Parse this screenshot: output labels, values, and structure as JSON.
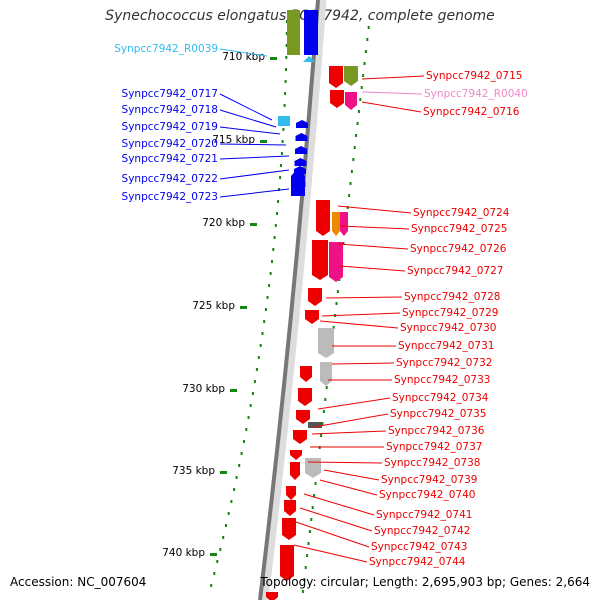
{
  "title": "Synechococcus elongatus PCC 7942, complete genome",
  "footer": {
    "accession": "Accession: NC_007604",
    "summary": "Topology: circular; Length: 2,695,903 bp; Genes: 2,664"
  },
  "colors": {
    "forward_gene": "#ee0000",
    "reverse_gene": "#0000ee",
    "rna_gene": "#33bbee",
    "pink_gene": "#ee1188",
    "cog_green": "#779922",
    "cog_orange": "#ee8800",
    "cog_gray": "#bbbbbb",
    "tick": "#118811"
  },
  "chart_data": {
    "type": "genome-map",
    "scale_labels": [
      "710 kbp",
      "715 kbp",
      "720 kbp",
      "725 kbp",
      "730 kbp",
      "735 kbp",
      "740 kbp"
    ],
    "left_labels": [
      {
        "text": "Synpcc7942_R0039",
        "kind": "rna"
      },
      {
        "text": "Synpcc7942_0717",
        "kind": "reverse"
      },
      {
        "text": "Synpcc7942_0718",
        "kind": "reverse"
      },
      {
        "text": "Synpcc7942_0719",
        "kind": "reverse"
      },
      {
        "text": "Synpcc7942_0720",
        "kind": "reverse"
      },
      {
        "text": "Synpcc7942_0721",
        "kind": "reverse"
      },
      {
        "text": "Synpcc7942_0722",
        "kind": "reverse"
      },
      {
        "text": "Synpcc7942_0723",
        "kind": "reverse"
      }
    ],
    "right_labels": [
      {
        "text": "Synpcc7942_0715",
        "kind": "forward"
      },
      {
        "text": "Synpcc7942_R0040",
        "kind": "rna_pink"
      },
      {
        "text": "Synpcc7942_0716",
        "kind": "forward"
      },
      {
        "text": "Synpcc7942_0724",
        "kind": "forward"
      },
      {
        "text": "Synpcc7942_0725",
        "kind": "forward"
      },
      {
        "text": "Synpcc7942_0726",
        "kind": "forward"
      },
      {
        "text": "Synpcc7942_0727",
        "kind": "forward"
      },
      {
        "text": "Synpcc7942_0728",
        "kind": "forward"
      },
      {
        "text": "Synpcc7942_0729",
        "kind": "forward"
      },
      {
        "text": "Synpcc7942_0730",
        "kind": "forward"
      },
      {
        "text": "Synpcc7942_0731",
        "kind": "forward"
      },
      {
        "text": "Synpcc7942_0732",
        "kind": "forward"
      },
      {
        "text": "Synpcc7942_0733",
        "kind": "forward"
      },
      {
        "text": "Synpcc7942_0734",
        "kind": "forward"
      },
      {
        "text": "Synpcc7942_0735",
        "kind": "forward"
      },
      {
        "text": "Synpcc7942_0736",
        "kind": "forward"
      },
      {
        "text": "Synpcc7942_0737",
        "kind": "forward"
      },
      {
        "text": "Synpcc7942_0738",
        "kind": "forward"
      },
      {
        "text": "Synpcc7942_0739",
        "kind": "forward"
      },
      {
        "text": "Synpcc7942_0740",
        "kind": "forward"
      },
      {
        "text": "Synpcc7942_0741",
        "kind": "forward"
      },
      {
        "text": "Synpcc7942_0742",
        "kind": "forward"
      },
      {
        "text": "Synpcc7942_0743",
        "kind": "forward"
      },
      {
        "text": "Synpcc7942_0744",
        "kind": "forward"
      }
    ]
  }
}
